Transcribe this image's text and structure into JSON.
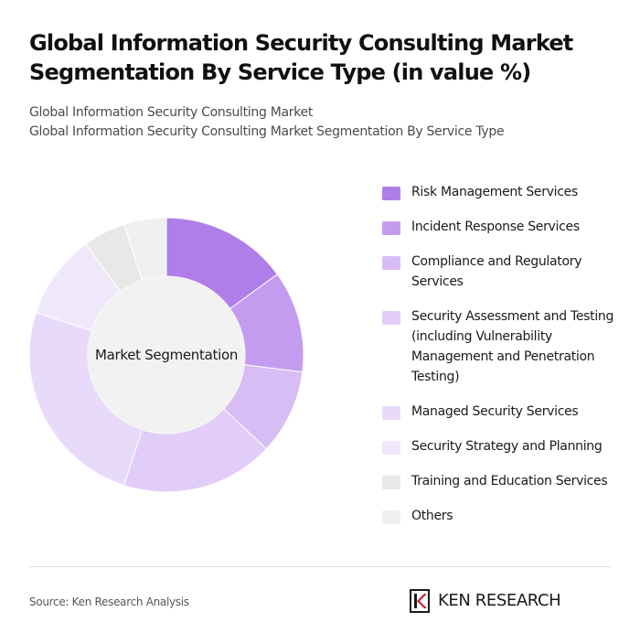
{
  "header": {
    "title": "Global Information Security Consulting Market Segmentation By Service Type (in value %)",
    "subtitle_line1": "Global Information Security Consulting Market",
    "subtitle_line2": "Global Information Security Consulting Market Segmentation By Service Type"
  },
  "chart_data": {
    "type": "pie",
    "center_label": "Market Segmentation",
    "legend_position": "right",
    "categories": [
      "Risk Management Services",
      "Incident Response Services",
      "Compliance and Regulatory Services",
      "Security Assessment and Testing (including Vulnerability Management and Penetration Testing)",
      "Managed Security Services",
      "Security Strategy and Planning",
      "Training and Education Services",
      "Others"
    ],
    "values": [
      15,
      12,
      10,
      18,
      25,
      10,
      5,
      5
    ],
    "colors": [
      "#b07ee8",
      "#c49cef",
      "#d8bdf5",
      "#e1cdf8",
      "#e8dbfa",
      "#efe8fb",
      "#e8e8e8",
      "#f0f0f0"
    ]
  },
  "footer": {
    "source": "Source: Ken Research Analysis",
    "brand_text": "KEN RESEARCH",
    "logo_icon": "ken-research-logo-icon"
  }
}
